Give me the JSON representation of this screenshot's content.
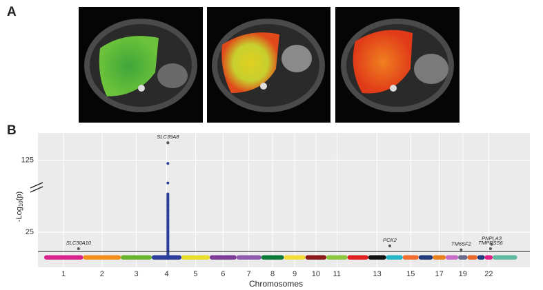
{
  "panel_labels": [
    "A",
    "B"
  ],
  "chart_data": {
    "type": "manhattan",
    "y_label": {
      "prefix": "-Log",
      "sub": "10",
      "suffix": "(p)"
    },
    "x_label": "Chromosomes",
    "categories": [
      "1",
      "2",
      "3",
      "4",
      "5",
      "6",
      "7",
      "8",
      "9",
      "10",
      "11",
      null,
      "13",
      null,
      "15",
      null,
      "17",
      null,
      "19",
      null,
      null,
      "22",
      null
    ],
    "starts": [
      0,
      249,
      491,
      689,
      879,
      1060,
      1231,
      1390,
      1535,
      1673,
      1807,
      1942,
      2075,
      2189,
      2296,
      2398,
      2488,
      2571,
      2651,
      2710,
      2774,
      2821,
      2872
    ],
    "ends": [
      249,
      491,
      689,
      879,
      1060,
      1231,
      1390,
      1535,
      1673,
      1807,
      1942,
      2075,
      2189,
      2296,
      2398,
      2488,
      2571,
      2651,
      2710,
      2774,
      2821,
      2872,
      3028
    ],
    "colors": [
      "#d6248c",
      "#f28e1c",
      "#6ab42d",
      "#2b3e9b",
      "#e8dc2c",
      "#7d3c98",
      "#8e5bb0",
      "#0e7a3a",
      "#f3dd3b",
      "#8b1a1a",
      "#8dc63f",
      "#e02020",
      "#111111",
      "#26b5c6",
      "#f06e2f",
      "#203a7a",
      "#e98020",
      "#c86ec8",
      "#6a6a8a",
      "#e86a2a",
      "#203a7a",
      "#e0218a",
      "#5fb8a0"
    ],
    "band_values": [
      4,
      4,
      4,
      4,
      4,
      4,
      4,
      4,
      4,
      4,
      4,
      4,
      4,
      4,
      4,
      4,
      4,
      4,
      4,
      4,
      4,
      4,
      4
    ],
    "column": {
      "position": 792,
      "values": [
        8,
        10,
        12,
        15,
        18,
        20,
        22,
        25,
        28,
        30,
        33,
        36,
        40,
        45,
        50,
        55,
        60,
        104,
        122,
        141
      ]
    },
    "annotations": [
      {
        "label": "SLC30A10",
        "position": 220,
        "value": 10
      },
      {
        "label": "SLC39A8",
        "position": 792,
        "value": 141
      },
      {
        "label": "PCK2",
        "position": 2213,
        "value": 12.5
      },
      {
        "label": "TM6SF2",
        "position": 2670,
        "value": 9
      },
      {
        "label": "TMPRSS6",
        "position": 2858,
        "value": 10
      },
      {
        "label": "PNPLA3",
        "position": 2865,
        "value": 14
      }
    ],
    "threshold": 7.3,
    "xlim": [
      -40,
      3110
    ],
    "ylim_lower": [
      -7,
      66
    ],
    "ylim_upper": [
      100,
      150
    ],
    "yticks": [
      25,
      125
    ],
    "grid": true
  }
}
